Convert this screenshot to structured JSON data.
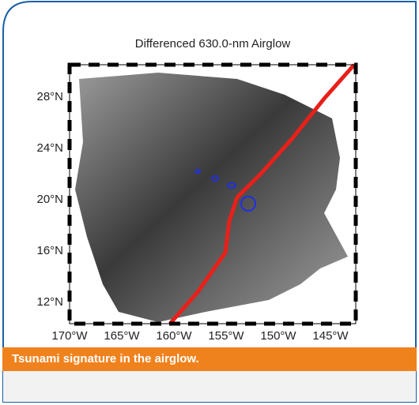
{
  "figure": {
    "title": "Differenced 630.0-nm Airglow",
    "lat_labels": [
      "28°N",
      "24°N",
      "20°N",
      "16°N",
      "12°N"
    ],
    "lon_labels": [
      "170°W",
      "165°W",
      "160°W",
      "155°W",
      "150°W",
      "145°W"
    ]
  },
  "caption": "Tsunami signature in the airglow."
}
